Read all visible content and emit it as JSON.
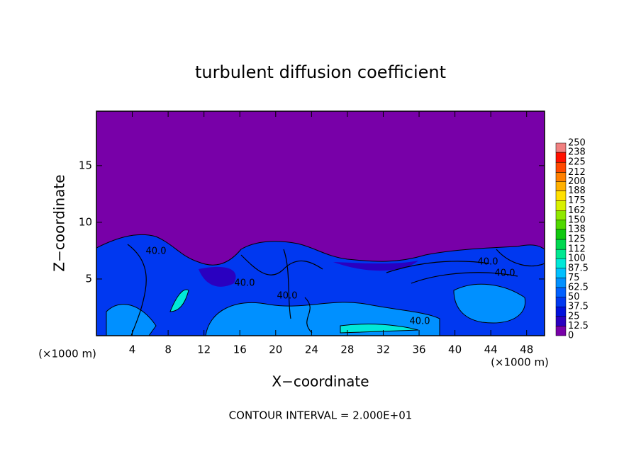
{
  "chart_data": {
    "type": "contour",
    "title": "turbulent diffusion coefficient",
    "x_label": "X−coordinate",
    "y_label": "Z−coordinate",
    "x_unit": "(×1000 m)",
    "y_unit": "(×1000 m)",
    "footer": "CONTOUR INTERVAL = 2.000E+01",
    "xlim": [
      0,
      50
    ],
    "xticks": [
      4,
      8,
      12,
      16,
      20,
      24,
      28,
      32,
      36,
      40,
      44,
      48
    ],
    "ylim": [
      0,
      19.8
    ],
    "yticks": [
      5,
      10,
      15
    ],
    "contour_labels": [
      "40.0",
      "40.0",
      "40.0",
      "40.0",
      "40.0",
      "40.0"
    ],
    "colorbar": {
      "levels": [
        0,
        12.5,
        25,
        37.5,
        50,
        62.5,
        75,
        87.5,
        100,
        112,
        125,
        138,
        150,
        162,
        175,
        188,
        200,
        212,
        225,
        238,
        250
      ],
      "colors": [
        "#7800a8",
        "#2a00c0",
        "#0010dc",
        "#0038f0",
        "#0060ff",
        "#0090ff",
        "#00c0ff",
        "#00e8d8",
        "#00e890",
        "#00d850",
        "#10c810",
        "#50d800",
        "#90e800",
        "#d8f000",
        "#ffe000",
        "#ffb000",
        "#ff8000",
        "#ff4800",
        "#ff1000",
        "#f08080"
      ]
    }
  }
}
